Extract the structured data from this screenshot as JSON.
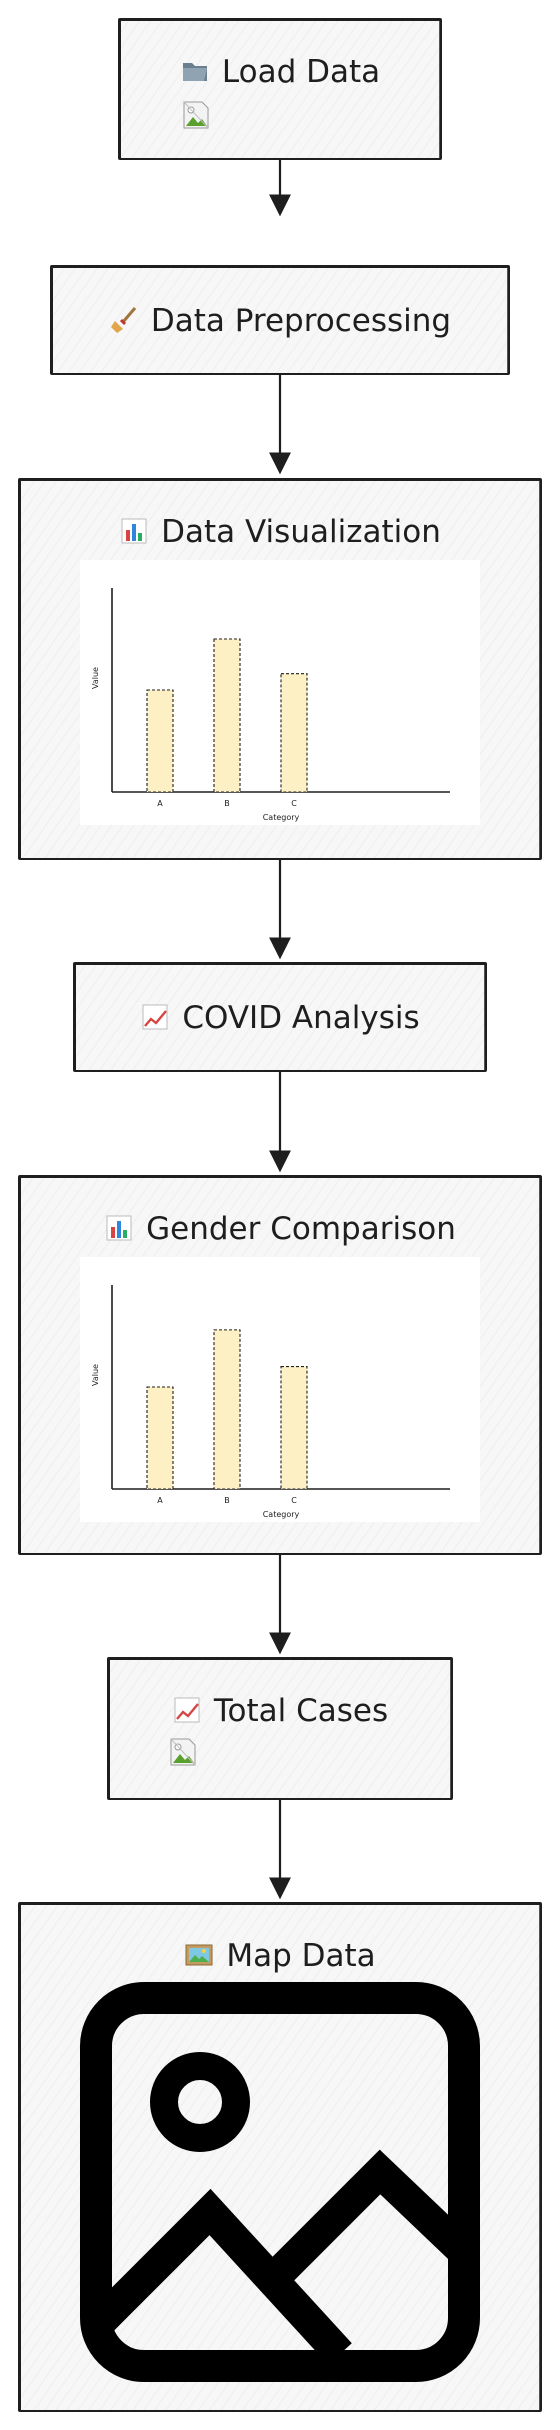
{
  "nodes": {
    "load": {
      "title": "Load Data",
      "icon": "folder-icon",
      "image": "broken-image-icon"
    },
    "preprocess": {
      "title": "Data Preprocessing",
      "icon": "broom-icon"
    },
    "visualization": {
      "title": "Data Visualization",
      "icon": "bar-chart-icon"
    },
    "covid": {
      "title": "COVID Analysis",
      "icon": "chart-increasing-icon"
    },
    "gender": {
      "title": "Gender Comparison",
      "icon": "bar-chart-icon"
    },
    "total": {
      "title": "Total Cases",
      "icon": "chart-increasing-icon",
      "image": "broken-image-icon"
    },
    "map": {
      "title": "Map Data",
      "icon": "framed-picture-icon",
      "image": "image-placeholder-icon"
    }
  },
  "chart_data": [
    {
      "type": "bar",
      "categories": [
        "A",
        "B",
        "C"
      ],
      "values": [
        50,
        75,
        58
      ],
      "xlabel": "Category",
      "ylabel": "Value",
      "ylim": [
        0,
        100
      ],
      "bar_color": "#fdf0c4"
    },
    {
      "type": "bar",
      "categories": [
        "A",
        "B",
        "C"
      ],
      "values": [
        50,
        78,
        60
      ],
      "xlabel": "Category",
      "ylabel": "Value",
      "ylim": [
        0,
        100
      ],
      "bar_color": "#fdf0c4"
    }
  ],
  "colors": {
    "stroke": "#1e1e1e",
    "node_fill": "#f7f7f7"
  }
}
